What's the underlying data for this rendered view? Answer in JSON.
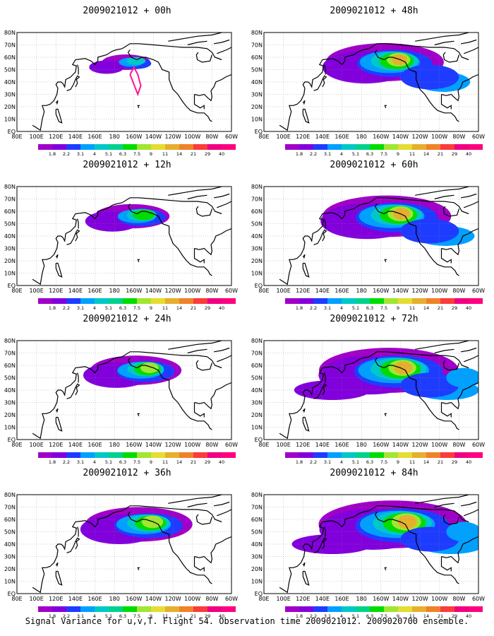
{
  "panels": [
    {
      "title": "2009021012 + 00h",
      "stage": 0
    },
    {
      "title": "2009021012 + 12h",
      "stage": 1
    },
    {
      "title": "2009021012 + 24h",
      "stage": 2
    },
    {
      "title": "2009021012 + 36h",
      "stage": 3
    },
    {
      "title": "2009021012 + 48h",
      "stage": 4
    },
    {
      "title": "2009021012 + 60h",
      "stage": 5
    },
    {
      "title": "2009021012 + 72h",
      "stage": 6
    },
    {
      "title": "2009021012 + 84h",
      "stage": 7
    }
  ],
  "lat_labels": [
    "80N",
    "70N",
    "60N",
    "50N",
    "40N",
    "30N",
    "20N",
    "10N",
    "EQ"
  ],
  "lon_labels": [
    "80E",
    "100E",
    "120E",
    "140E",
    "160E",
    "180",
    "160W",
    "140W",
    "120W",
    "100W",
    "80W",
    "60W"
  ],
  "legend": {
    "values": [
      "1.8",
      "2.2",
      "3.1",
      "4",
      "5.1",
      "6.3",
      "7.5",
      "9",
      "11",
      "14",
      "21",
      "29",
      "40"
    ],
    "colors": [
      "#a000c8",
      "#8200dc",
      "#1e3cff",
      "#00a0ff",
      "#00c8c8",
      "#00d28c",
      "#00dc00",
      "#a0e632",
      "#e6dc32",
      "#e6af2d",
      "#f08228",
      "#fa3c3c",
      "#f00082",
      "#ff0080"
    ]
  },
  "footer": "Signal Variance for u,v,T. Flight 54. Observation time 2009021012. 2009020700 ensemble."
}
